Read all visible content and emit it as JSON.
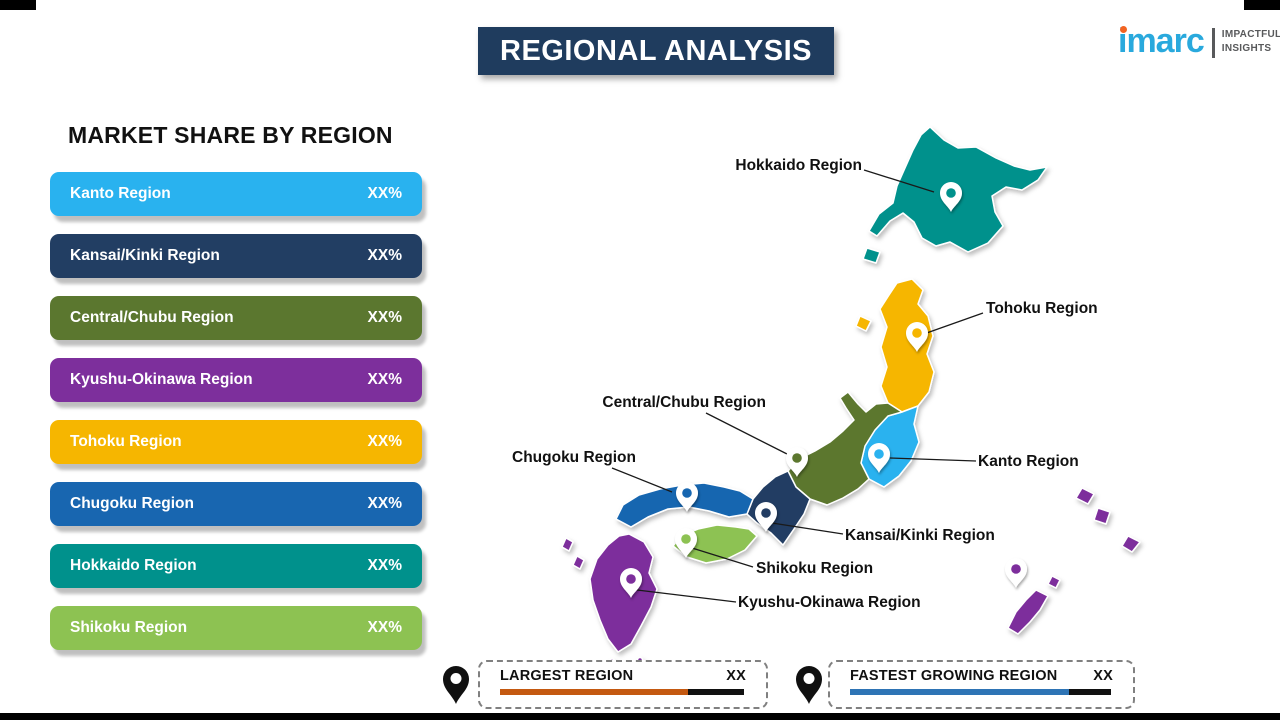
{
  "header": {
    "title": "REGIONAL ANALYSIS"
  },
  "logo": {
    "brand": "imarc",
    "tagline_top": "IMPACTFUL",
    "tagline_bottom": "INSIGHTS",
    "brand_color": "#29a9dd",
    "dot_color": "#f26322"
  },
  "market_share": {
    "heading": "MARKET SHARE BY REGION",
    "items": [
      {
        "label": "Kanto Region",
        "value": "XX%",
        "color": "#29b2ef"
      },
      {
        "label": "Kansai/Kinki Region",
        "value": "XX%",
        "color": "#223e63"
      },
      {
        "label": "Central/Chubu Region",
        "value": "XX%",
        "color": "#5b772f"
      },
      {
        "label": "Kyushu-Okinawa Region",
        "value": "XX%",
        "color": "#7d2f9c"
      },
      {
        "label": "Tohoku Region",
        "value": "XX%",
        "color": "#f6b600"
      },
      {
        "label": "Chugoku Region",
        "value": "XX%",
        "color": "#1866b0"
      },
      {
        "label": "Hokkaido Region",
        "value": "XX%",
        "color": "#00918c"
      },
      {
        "label": "Shikoku Region",
        "value": "XX%",
        "color": "#8dc252"
      }
    ]
  },
  "map": {
    "labels": {
      "hokkaido": "Hokkaido Region",
      "tohoku": "Tohoku Region",
      "central_chubu": "Central/Chubu Region",
      "kanto": "Kanto Region",
      "chugoku": "Chugoku Region",
      "kansai": "Kansai/Kinki Region",
      "shikoku": "Shikoku Region",
      "kyushu_okinawa": "Kyushu-Okinawa Region"
    },
    "region_colors": {
      "hokkaido": "#00918c",
      "tohoku": "#f6b600",
      "kanto": "#29b2ef",
      "chubu": "#5b772f",
      "kansai": "#223e63",
      "chugoku": "#1866b0",
      "shikoku": "#8dc252",
      "kyushu_okinawa": "#7d2f9c"
    }
  },
  "legend": {
    "largest": {
      "label": "LARGEST REGION",
      "value": "XX",
      "bar_color": "#c45911"
    },
    "fastest": {
      "label": "FASTEST GROWING REGION",
      "value": "XX",
      "bar_color": "#2e74b5"
    }
  }
}
